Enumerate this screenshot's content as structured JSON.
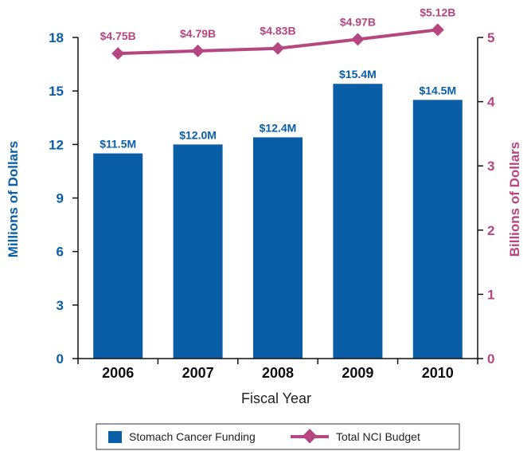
{
  "chart_data": {
    "type": "bar",
    "xlabel": "Fiscal Year",
    "ylabel": "Millions of Dollars",
    "y2label": "Billions of Dollars",
    "categories": [
      "2006",
      "2007",
      "2008",
      "2009",
      "2010"
    ],
    "ylim": [
      0,
      18
    ],
    "yticks": [
      "0",
      "3",
      "6",
      "9",
      "12",
      "15",
      "18"
    ],
    "y2lim": [
      0,
      5
    ],
    "y2ticks": [
      "0",
      "1",
      "2",
      "3",
      "4",
      "5"
    ],
    "grid": false,
    "legend_position": "bottom",
    "series": [
      {
        "name": "Stomach Cancer Funding",
        "type": "bar",
        "axis": "left",
        "values": [
          11.5,
          12.0,
          12.4,
          15.4,
          14.5
        ],
        "labels": [
          "$11.5M",
          "$12.0M",
          "$12.4M",
          "$15.4M",
          "$14.5M"
        ],
        "color": "#0a5ea8"
      },
      {
        "name": "Total NCI Budget",
        "type": "line",
        "axis": "right",
        "values": [
          4.75,
          4.79,
          4.83,
          4.97,
          5.12
        ],
        "labels": [
          "$4.75B",
          "$4.79B",
          "$4.83B",
          "$4.97B",
          "$5.12B"
        ],
        "color": "#b5467f"
      }
    ]
  }
}
